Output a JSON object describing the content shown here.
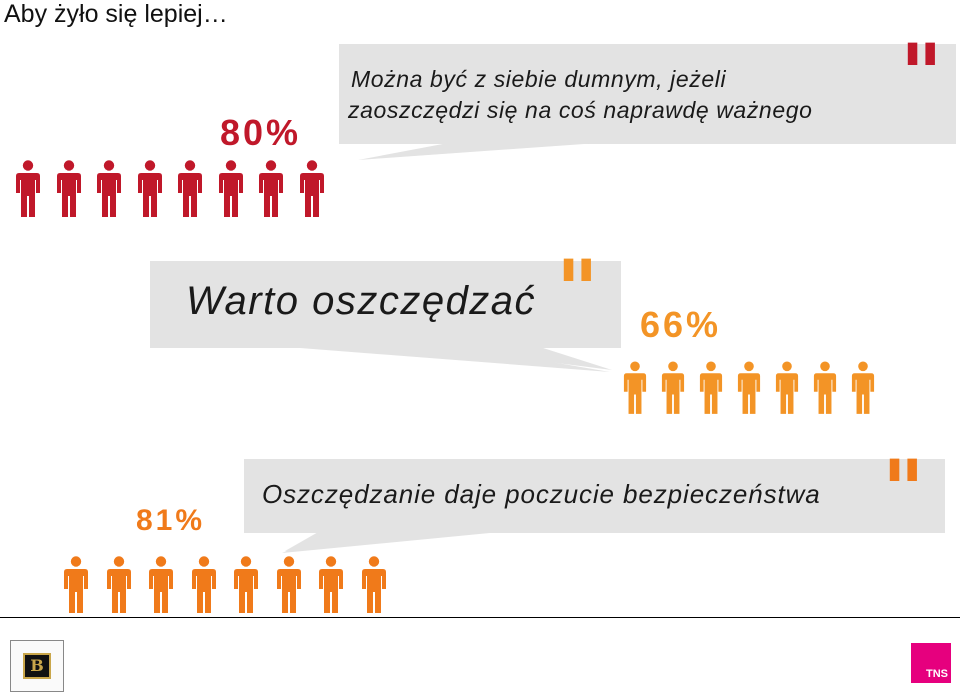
{
  "slide_title": "Aby żyło się lepiej…",
  "statements": [
    {
      "text_lines": [
        "Można być z siebie dumnym, jeżeli",
        "zaoszczędzi się na coś naprawdę ważnego"
      ],
      "percent": "80%",
      "figures": 8,
      "color": "#c0182a"
    },
    {
      "text_lines": [
        "Warto oszczędzać"
      ],
      "percent": "66%",
      "figures": 7,
      "color": "#f39426"
    },
    {
      "text_lines": [
        "Oszczędzanie daje poczucie bezpieczeństwa"
      ],
      "percent": "81%",
      "figures": 8,
      "color": "#f07a1a"
    }
  ],
  "quote_mark": "\"",
  "logos": {
    "right": "TNS",
    "left_monogram": "B"
  }
}
